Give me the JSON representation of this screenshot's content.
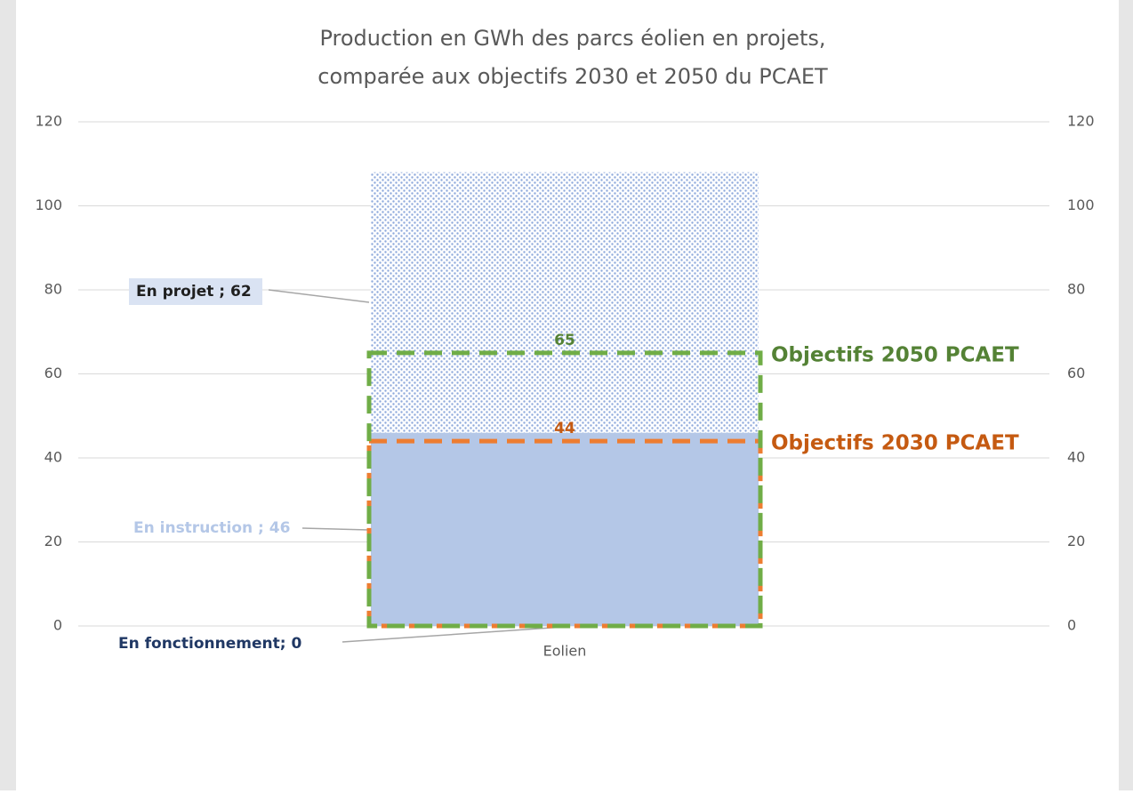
{
  "chart_data": {
    "type": "bar",
    "stacked": true,
    "title": [
      "Production en GWh des parcs éolien en projets,",
      "comparée aux objectifs 2030 et 2050 du PCAET"
    ],
    "categories": [
      "Eolien"
    ],
    "series": [
      {
        "name": "En fonctionnement",
        "color": "#203864",
        "values": [
          0
        ],
        "value_labels": [
          "En fonctionnement; 0"
        ]
      },
      {
        "name": "En instruction",
        "color": "#b4c7e7",
        "values": [
          46
        ],
        "value_labels": [
          "En instruction  ; 46"
        ]
      },
      {
        "name": "En projet",
        "color": "#8faadc",
        "values": [
          62
        ],
        "value_labels": [
          "En projet ; 62"
        ]
      },
      {
        "name": "Objectifs 2030 PCAET",
        "color": "#ed7d31",
        "values": [
          44
        ],
        "axis": "y2"
      },
      {
        "name": "Objectifs 2050 PCAET",
        "color": "#70ad47",
        "values": [
          65
        ],
        "axis": "y2"
      }
    ],
    "ylim": [
      0,
      120
    ],
    "yticks": [
      0,
      20,
      40,
      60,
      80,
      100,
      120
    ],
    "y2lim": [
      0,
      120
    ],
    "y2ticks": [
      0,
      20,
      40,
      60,
      80,
      100,
      120
    ],
    "grid": true
  }
}
